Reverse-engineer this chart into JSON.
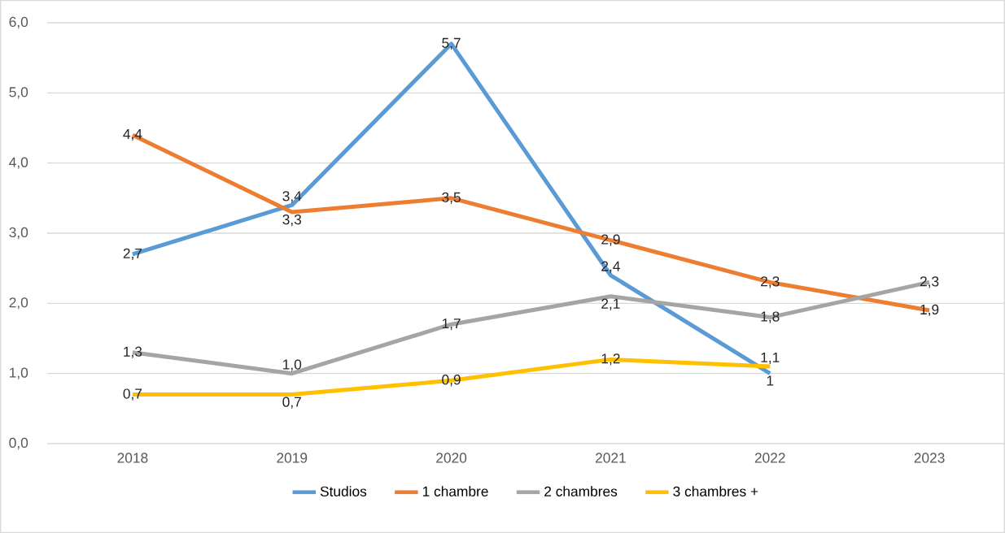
{
  "chart_data": {
    "type": "line",
    "categories": [
      "2018",
      "2019",
      "2020",
      "2021",
      "2022",
      "2023"
    ],
    "series": [
      {
        "name": "Studios",
        "color": "#5b9bd5",
        "values": [
          2.7,
          3.4,
          5.7,
          2.4,
          1,
          null
        ],
        "value_labels": [
          "2,7",
          "3,4",
          "5,7",
          "2,4",
          "1",
          null
        ]
      },
      {
        "name": "1 chambre",
        "color": "#ed7d31",
        "values": [
          4.4,
          3.3,
          3.5,
          2.9,
          2.3,
          1.9
        ],
        "value_labels": [
          "4,4",
          "3,3",
          "3,5",
          "2,9",
          "2,3",
          "1,9"
        ]
      },
      {
        "name": "2 chambres",
        "color": "#a5a5a5",
        "values": [
          1.3,
          1.0,
          1.7,
          2.1,
          1.8,
          2.3
        ],
        "value_labels": [
          "1,3",
          "1,0",
          "1,7",
          "2,1",
          "1,8",
          "2,3"
        ]
      },
      {
        "name": "3 chambres +",
        "color": "#ffc000",
        "values": [
          0.7,
          0.7,
          0.9,
          1.2,
          1.1,
          null
        ],
        "value_labels": [
          "0,7",
          "0,7",
          "0,9",
          "1,2",
          "1,1",
          null
        ]
      }
    ],
    "ylim": [
      0,
      6
    ],
    "yticks": [
      {
        "value": 0,
        "label": "0,0"
      },
      {
        "value": 1,
        "label": "1,0"
      },
      {
        "value": 2,
        "label": "2,0"
      },
      {
        "value": 3,
        "label": "3,0"
      },
      {
        "value": 4,
        "label": "4,0"
      },
      {
        "value": 5,
        "label": "5,0"
      },
      {
        "value": 6,
        "label": "6,0"
      }
    ],
    "grid": "y",
    "legend": "bottom",
    "marker": "none",
    "line_style": "solid"
  }
}
